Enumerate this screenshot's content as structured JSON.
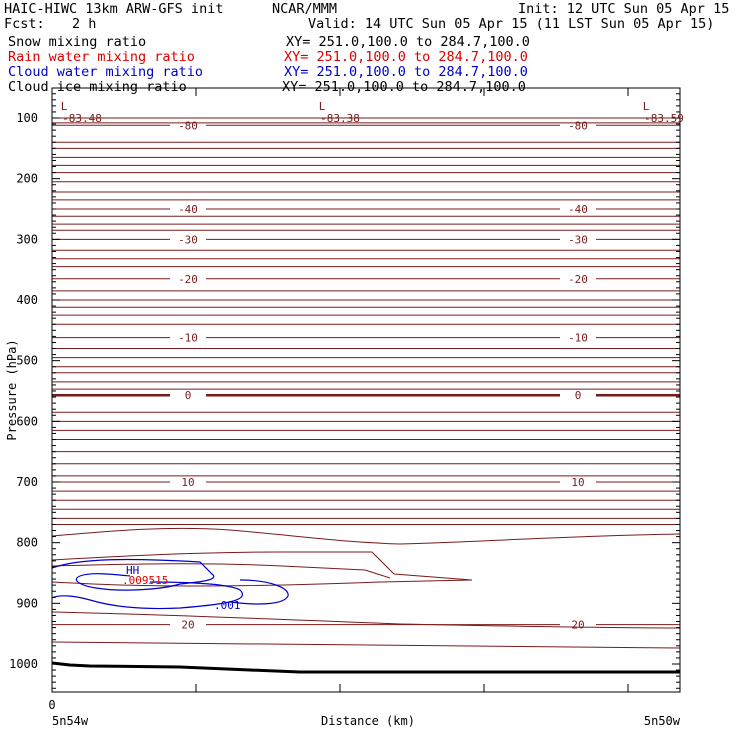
{
  "header": {
    "model": "HAIC-HIWC 13km ARW-GFS init",
    "org": "NCAR/MMM",
    "init": "Init: 12 UTC Sun 05 Apr 15",
    "fcst_label": "Fcst:",
    "fcst_value": "2 h",
    "valid": "Valid: 14 UTC Sun 05 Apr 15 (11 LST Sun 05 Apr 15)",
    "fields": [
      {
        "name": "Snow mixing ratio",
        "xy": "XY= 251.0,100.0 to 284.7,100.0",
        "color": "#000000"
      },
      {
        "name": "Rain water mixing ratio",
        "xy": "XY= 251.0,100.0 to 284.7,100.0",
        "color": "#dd0000"
      },
      {
        "name": "Cloud water mixing ratio",
        "xy": "XY= 251.0,100.0 to 284.7,100.0",
        "color": "#0000cc"
      },
      {
        "name": "Cloud ice mixing ratio",
        "xy": "XY= 251.0,100.0 to 284.7,100.0",
        "color": "#000000"
      }
    ]
  },
  "chart_data": {
    "type": "contour",
    "xlabel": "Distance (km)",
    "ylabel": "Pressure (hPa)",
    "x_start_label": "5n54w",
    "x_end_label": "5n50w",
    "x_tick_zero": "0",
    "yticks": [
      "100",
      "200",
      "300",
      "400",
      "500",
      "600",
      "700",
      "800",
      "900",
      "1000"
    ],
    "ylim": [
      1050,
      50
    ],
    "colors": {
      "temperature": "#7a1a1a",
      "cloud_water": "#0000cc",
      "rain": "#dd0000",
      "terrain": "#000000"
    },
    "low_markers": [
      {
        "symbol": "L",
        "value": "-83.48",
        "position": "left"
      },
      {
        "symbol": "L",
        "value": "-83.38",
        "position": "center"
      },
      {
        "symbol": "L",
        "value": "-83.59",
        "position": "right"
      }
    ],
    "isotherm_labels": [
      {
        "p": 112,
        "left": "-80",
        "right": "-80"
      },
      {
        "p": 250,
        "left": "-40",
        "right": "-40"
      },
      {
        "p": 300,
        "left": "-30",
        "right": "-30"
      },
      {
        "p": 365,
        "left": "-20",
        "right": "-20"
      },
      {
        "p": 462,
        "left": "-10",
        "right": "-10"
      },
      {
        "p": 557,
        "left": "0",
        "right": "0"
      },
      {
        "p": 700,
        "left": "10",
        "right": "10"
      },
      {
        "p": 935,
        "left": "20",
        "right": "20"
      }
    ],
    "cloud_labels": {
      "high": "HH",
      "contour": ".001",
      "overlap": ".009515"
    }
  }
}
